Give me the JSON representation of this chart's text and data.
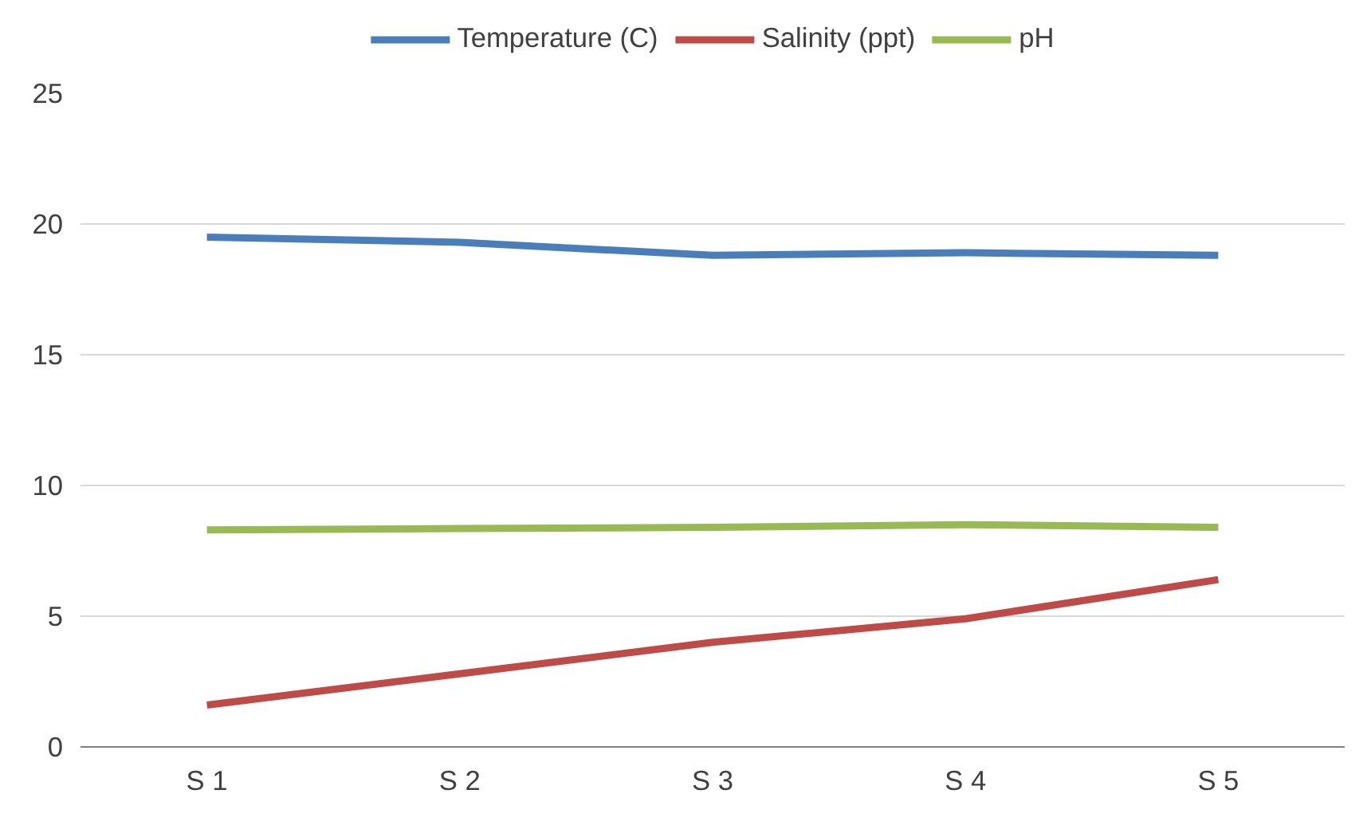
{
  "chart_data": {
    "type": "line",
    "categories": [
      "S 1",
      "S 2",
      "S 3",
      "S 4",
      "S 5"
    ],
    "series": [
      {
        "name": "Temperature (C)",
        "color": "#4a7ebb",
        "values": [
          19.5,
          19.3,
          18.8,
          18.9,
          18.8
        ]
      },
      {
        "name": "Salinity (ppt)",
        "color": "#be4b48",
        "values": [
          1.6,
          2.8,
          4.0,
          4.9,
          6.4
        ]
      },
      {
        "name": "pH",
        "color": "#98b954",
        "values": [
          8.3,
          8.35,
          8.4,
          8.5,
          8.4
        ]
      }
    ],
    "ylim": [
      0,
      25
    ],
    "yticks": [
      0,
      5,
      10,
      15,
      20,
      25
    ],
    "grid": "y",
    "legend": "top",
    "marker": "none",
    "line_style": "solid"
  }
}
